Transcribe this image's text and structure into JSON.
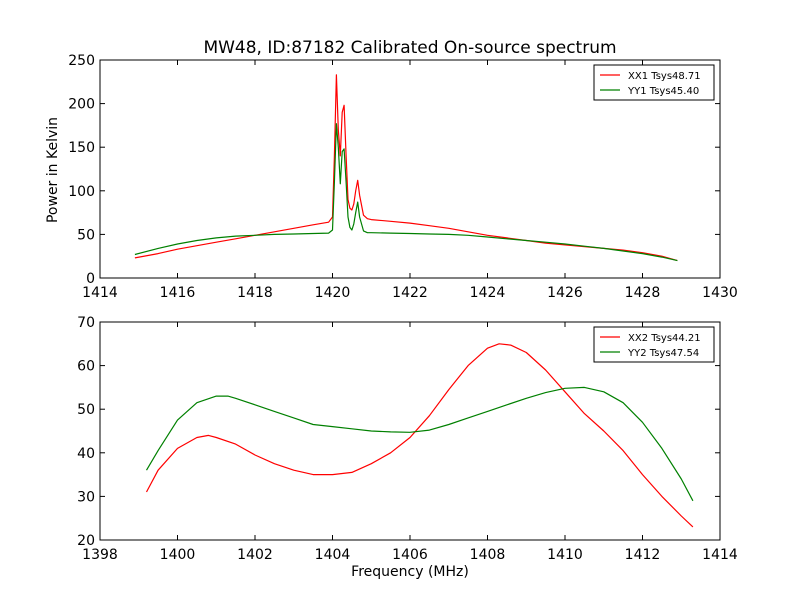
{
  "colors": {
    "red": "#ff0000",
    "green": "#008000",
    "axis": "#000000",
    "background": "#ffffff"
  },
  "chart_data": [
    {
      "type": "line",
      "title": "MW48, ID:87182 Calibrated On-source spectrum",
      "xlabel": "",
      "ylabel": "Power in Kelvin",
      "xlim": [
        1414,
        1430
      ],
      "ylim": [
        0,
        250
      ],
      "x_ticks": [
        "1414",
        "1416",
        "1418",
        "1420",
        "1422",
        "1424",
        "1426",
        "1428",
        "1430"
      ],
      "y_ticks": [
        "0",
        "50",
        "100",
        "150",
        "200",
        "250"
      ],
      "legend_position": "top-right",
      "grid": false,
      "series": [
        {
          "name": "XX1 Tsys48.71",
          "color": "#ff0000",
          "x": [
            1414.9,
            1415.5,
            1416,
            1416.5,
            1417,
            1417.5,
            1418,
            1418.5,
            1419,
            1419.5,
            1419.9,
            1420.0,
            1420.05,
            1420.1,
            1420.15,
            1420.2,
            1420.25,
            1420.3,
            1420.35,
            1420.4,
            1420.45,
            1420.5,
            1420.55,
            1420.6,
            1420.65,
            1420.7,
            1420.8,
            1420.9,
            1421,
            1421.5,
            1422,
            1422.5,
            1423,
            1423.5,
            1424,
            1424.5,
            1425,
            1425.5,
            1426,
            1426.5,
            1427,
            1427.5,
            1428,
            1428.5,
            1428.9
          ],
          "y": [
            23,
            28,
            33,
            37,
            41,
            45,
            49,
            53,
            57,
            61,
            64,
            70,
            140,
            233,
            170,
            140,
            190,
            198,
            140,
            90,
            80,
            78,
            85,
            100,
            112,
            95,
            72,
            68,
            67,
            65,
            63,
            60,
            57,
            53,
            49,
            46,
            43,
            40,
            38,
            36,
            34,
            32,
            29,
            25,
            20
          ]
        },
        {
          "name": "YY1 Tsys45.40",
          "color": "#008000",
          "x": [
            1414.9,
            1415.5,
            1416,
            1416.5,
            1417,
            1417.5,
            1418,
            1418.5,
            1419,
            1419.5,
            1419.9,
            1420.0,
            1420.05,
            1420.1,
            1420.15,
            1420.2,
            1420.25,
            1420.3,
            1420.35,
            1420.4,
            1420.45,
            1420.5,
            1420.55,
            1420.6,
            1420.65,
            1420.7,
            1420.8,
            1420.9,
            1421,
            1421.5,
            1422,
            1422.5,
            1423,
            1423.5,
            1424,
            1424.5,
            1425,
            1425.5,
            1426,
            1426.5,
            1427,
            1427.5,
            1428,
            1428.5,
            1428.9
          ],
          "y": [
            27,
            34,
            39,
            43,
            46,
            48,
            49,
            50,
            50.5,
            51,
            51.5,
            55,
            110,
            177,
            150,
            108,
            145,
            148,
            110,
            70,
            58,
            55,
            62,
            75,
            87,
            70,
            54,
            52,
            52,
            51.5,
            51,
            50.5,
            50,
            49,
            47,
            45,
            43,
            41,
            39,
            36.5,
            34,
            31,
            28,
            24,
            20
          ]
        }
      ]
    },
    {
      "type": "line",
      "title": "",
      "xlabel": "Frequency (MHz)",
      "ylabel": "",
      "xlim": [
        1398,
        1414
      ],
      "ylim": [
        20,
        70
      ],
      "x_ticks": [
        "1398",
        "1400",
        "1402",
        "1404",
        "1406",
        "1408",
        "1410",
        "1412",
        "1414"
      ],
      "y_ticks": [
        "20",
        "30",
        "40",
        "50",
        "60",
        "70"
      ],
      "legend_position": "top-right",
      "grid": false,
      "series": [
        {
          "name": "XX2 Tsys44.21",
          "color": "#ff0000",
          "x": [
            1399.2,
            1399.5,
            1400,
            1400.5,
            1400.8,
            1401,
            1401.5,
            1402,
            1402.5,
            1403,
            1403.5,
            1404,
            1404.5,
            1405,
            1405.5,
            1406,
            1406.5,
            1407,
            1407.5,
            1408,
            1408.3,
            1408.6,
            1409,
            1409.5,
            1410,
            1410.5,
            1411,
            1411.5,
            1412,
            1412.5,
            1413,
            1413.3
          ],
          "y": [
            31,
            36,
            41,
            43.5,
            44,
            43.5,
            42,
            39.5,
            37.5,
            36,
            35,
            35,
            35.5,
            37.5,
            40,
            43.5,
            48.5,
            54.5,
            60,
            64,
            65,
            64.7,
            63,
            59,
            54,
            49,
            45,
            40.5,
            35,
            30,
            25.5,
            23
          ]
        },
        {
          "name": "YY2 Tsys47.54",
          "color": "#008000",
          "x": [
            1399.2,
            1399.5,
            1400,
            1400.5,
            1401,
            1401.3,
            1401.5,
            1402,
            1402.5,
            1403,
            1403.5,
            1404,
            1404.5,
            1405,
            1405.5,
            1406,
            1406.5,
            1407,
            1407.5,
            1408,
            1408.5,
            1409,
            1409.5,
            1410,
            1410.5,
            1411,
            1411.5,
            1412,
            1412.5,
            1413,
            1413.3
          ],
          "y": [
            36,
            40.5,
            47.5,
            51.5,
            53,
            53,
            52.5,
            51,
            49.5,
            48,
            46.5,
            46,
            45.5,
            45,
            44.8,
            44.7,
            45.2,
            46.5,
            48,
            49.5,
            51,
            52.5,
            53.8,
            54.8,
            55,
            54,
            51.5,
            47,
            41,
            34,
            29
          ]
        }
      ]
    }
  ]
}
